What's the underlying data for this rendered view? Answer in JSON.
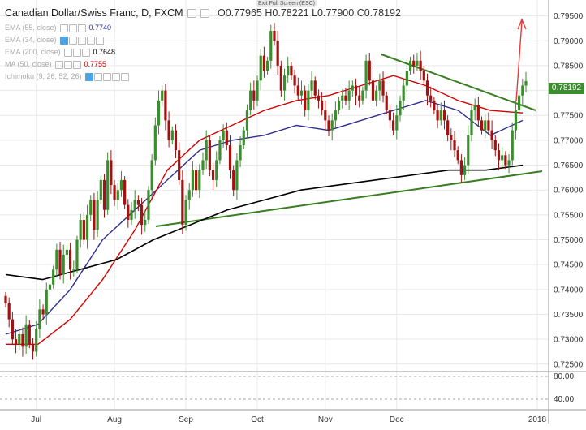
{
  "header": {
    "title": "Canadian Dollar/Swiss Franc, D, FXCM",
    "open_label": "O",
    "open": "0.77965",
    "high_label": "H",
    "high": "0.78221",
    "low_label": "L",
    "low": "0.77900",
    "close_label": "C",
    "close": "0.78192"
  },
  "exit_fullscreen": "Exit Full Screen (ESC)",
  "indicators": [
    {
      "label": "EMA (55, close)",
      "value": "0.7740",
      "color": "#2f2f8f"
    },
    {
      "label": "EMA (34, close)",
      "value": "",
      "color": "#cfcfcf"
    },
    {
      "label": "EMA (200, close)",
      "value": "0.7648",
      "color": "#000000"
    },
    {
      "label": "MA (50, close)",
      "value": "0.7755",
      "color": "#d40000"
    },
    {
      "label": "Ichimoku (9, 26, 52, 26)",
      "value": "",
      "color": "#cfcfcf"
    }
  ],
  "current_price": "0.78192",
  "oscillator": {
    "level_high": "80.00",
    "level_low": "40.00"
  },
  "colors": {
    "up": "#3b8e2e",
    "down": "#a51111",
    "trendline": "#3a7d22",
    "arrow": "#e23b3b",
    "grid": "#e9e9e9"
  },
  "chart_data": {
    "type": "candlestick",
    "title": "Canadian Dollar/Swiss Franc, D, FXCM",
    "ylim": [
      0.7235,
      0.7982
    ],
    "y_ticks": [
      "0.79500",
      "0.79000",
      "0.78500",
      "0.78000",
      "0.77500",
      "0.77000",
      "0.76500",
      "0.76000",
      "0.75500",
      "0.75000",
      "0.74500",
      "0.74000",
      "0.73500",
      "0.73000",
      "0.72500"
    ],
    "x_ticks": [
      "Jul",
      "Aug",
      "Sep",
      "Oct",
      "Nov",
      "Dec",
      "2018"
    ],
    "close": [
      0.7372,
      0.734,
      0.73,
      0.729,
      0.731,
      0.7285,
      0.733,
      0.729,
      0.7275,
      0.732,
      0.736,
      0.735,
      0.74,
      0.741,
      0.744,
      0.748,
      0.743,
      0.747,
      0.748,
      0.744,
      0.744,
      0.75,
      0.754,
      0.75,
      0.755,
      0.758,
      0.752,
      0.758,
      0.762,
      0.756,
      0.766,
      0.761,
      0.758,
      0.76,
      0.762,
      0.757,
      0.754,
      0.756,
      0.758,
      0.757,
      0.753,
      0.754,
      0.76,
      0.766,
      0.773,
      0.778,
      0.78,
      0.774,
      0.77,
      0.772,
      0.768,
      0.762,
      0.753,
      0.758,
      0.76,
      0.764,
      0.76,
      0.764,
      0.766,
      0.77,
      0.764,
      0.762,
      0.766,
      0.77,
      0.772,
      0.769,
      0.764,
      0.76,
      0.766,
      0.769,
      0.772,
      0.776,
      0.78,
      0.778,
      0.782,
      0.787,
      0.784,
      0.786,
      0.792,
      0.79,
      0.785,
      0.78,
      0.783,
      0.785,
      0.783,
      0.781,
      0.779,
      0.78,
      0.776,
      0.78,
      0.782,
      0.779,
      0.778,
      0.776,
      0.774,
      0.772,
      0.774,
      0.776,
      0.778,
      0.779,
      0.778,
      0.78,
      0.781,
      0.779,
      0.778,
      0.78,
      0.786,
      0.782,
      0.778,
      0.78,
      0.782,
      0.779,
      0.776,
      0.774,
      0.772,
      0.775,
      0.778,
      0.781,
      0.784,
      0.786,
      0.785,
      0.786,
      0.784,
      0.782,
      0.779,
      0.778,
      0.776,
      0.774,
      0.776,
      0.774,
      0.771,
      0.77,
      0.768,
      0.766,
      0.763,
      0.765,
      0.771,
      0.776,
      0.777,
      0.774,
      0.772,
      0.774,
      0.772,
      0.77,
      0.768,
      0.766,
      0.767,
      0.765,
      0.766,
      0.772,
      0.776,
      0.779,
      0.781,
      0.7819
    ],
    "series": [
      {
        "name": "EMA (55, close)",
        "values": [
          0.731,
          0.733,
          0.74,
          0.75,
          0.756,
          0.762,
          0.768,
          0.77,
          0.771,
          0.773,
          0.772,
          0.774,
          0.776,
          0.778,
          0.776,
          0.771,
          0.774
        ]
      },
      {
        "name": "MA (50, close)",
        "values": [
          0.729,
          0.729,
          0.734,
          0.742,
          0.752,
          0.764,
          0.77,
          0.773,
          0.776,
          0.778,
          0.779,
          0.781,
          0.783,
          0.781,
          0.778,
          0.776,
          0.7755
        ]
      },
      {
        "name": "EMA (200, close)",
        "values": [
          0.743,
          0.742,
          0.744,
          0.746,
          0.75,
          0.753,
          0.756,
          0.758,
          0.76,
          0.761,
          0.762,
          0.763,
          0.764,
          0.764,
          0.765
        ]
      }
    ]
  }
}
